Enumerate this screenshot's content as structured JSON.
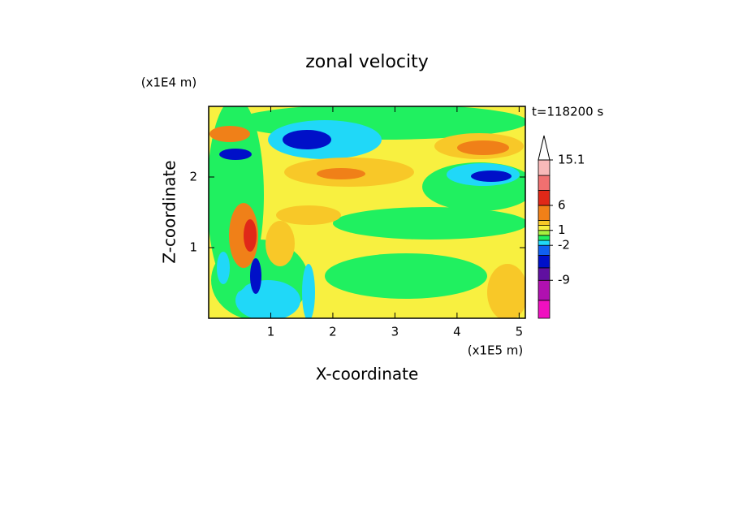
{
  "chart_data": {
    "type": "contour",
    "title": "zonal velocity",
    "x_label": "X-coordinate",
    "y_label": "Z-coordinate",
    "x_unit": "(x1E5 m)",
    "y_unit": "(x1E4 m)",
    "time_label": "t=118200 s",
    "xlim": [
      0,
      5.1
    ],
    "ylim": [
      0,
      3
    ],
    "xticks": [
      1,
      2,
      3,
      4,
      5
    ],
    "yticks": [
      1,
      2
    ],
    "colorbar": {
      "boundaries": [
        -16.6,
        -13,
        -9,
        -6.5,
        -4,
        -2,
        -1,
        0,
        1,
        2,
        3,
        6,
        9,
        12,
        15.1
      ],
      "colors": [
        "#f010c0",
        "#b010b0",
        "#6010a0",
        "#0010c8",
        "#1060f0",
        "#20d8f8",
        "#20f060",
        "#a8f040",
        "#f8f040",
        "#f8c828",
        "#f08018",
        "#e02818",
        "#f07070",
        "#f8b8b8"
      ],
      "ticks": [
        15.1,
        6,
        1,
        -2,
        -9
      ]
    }
  }
}
